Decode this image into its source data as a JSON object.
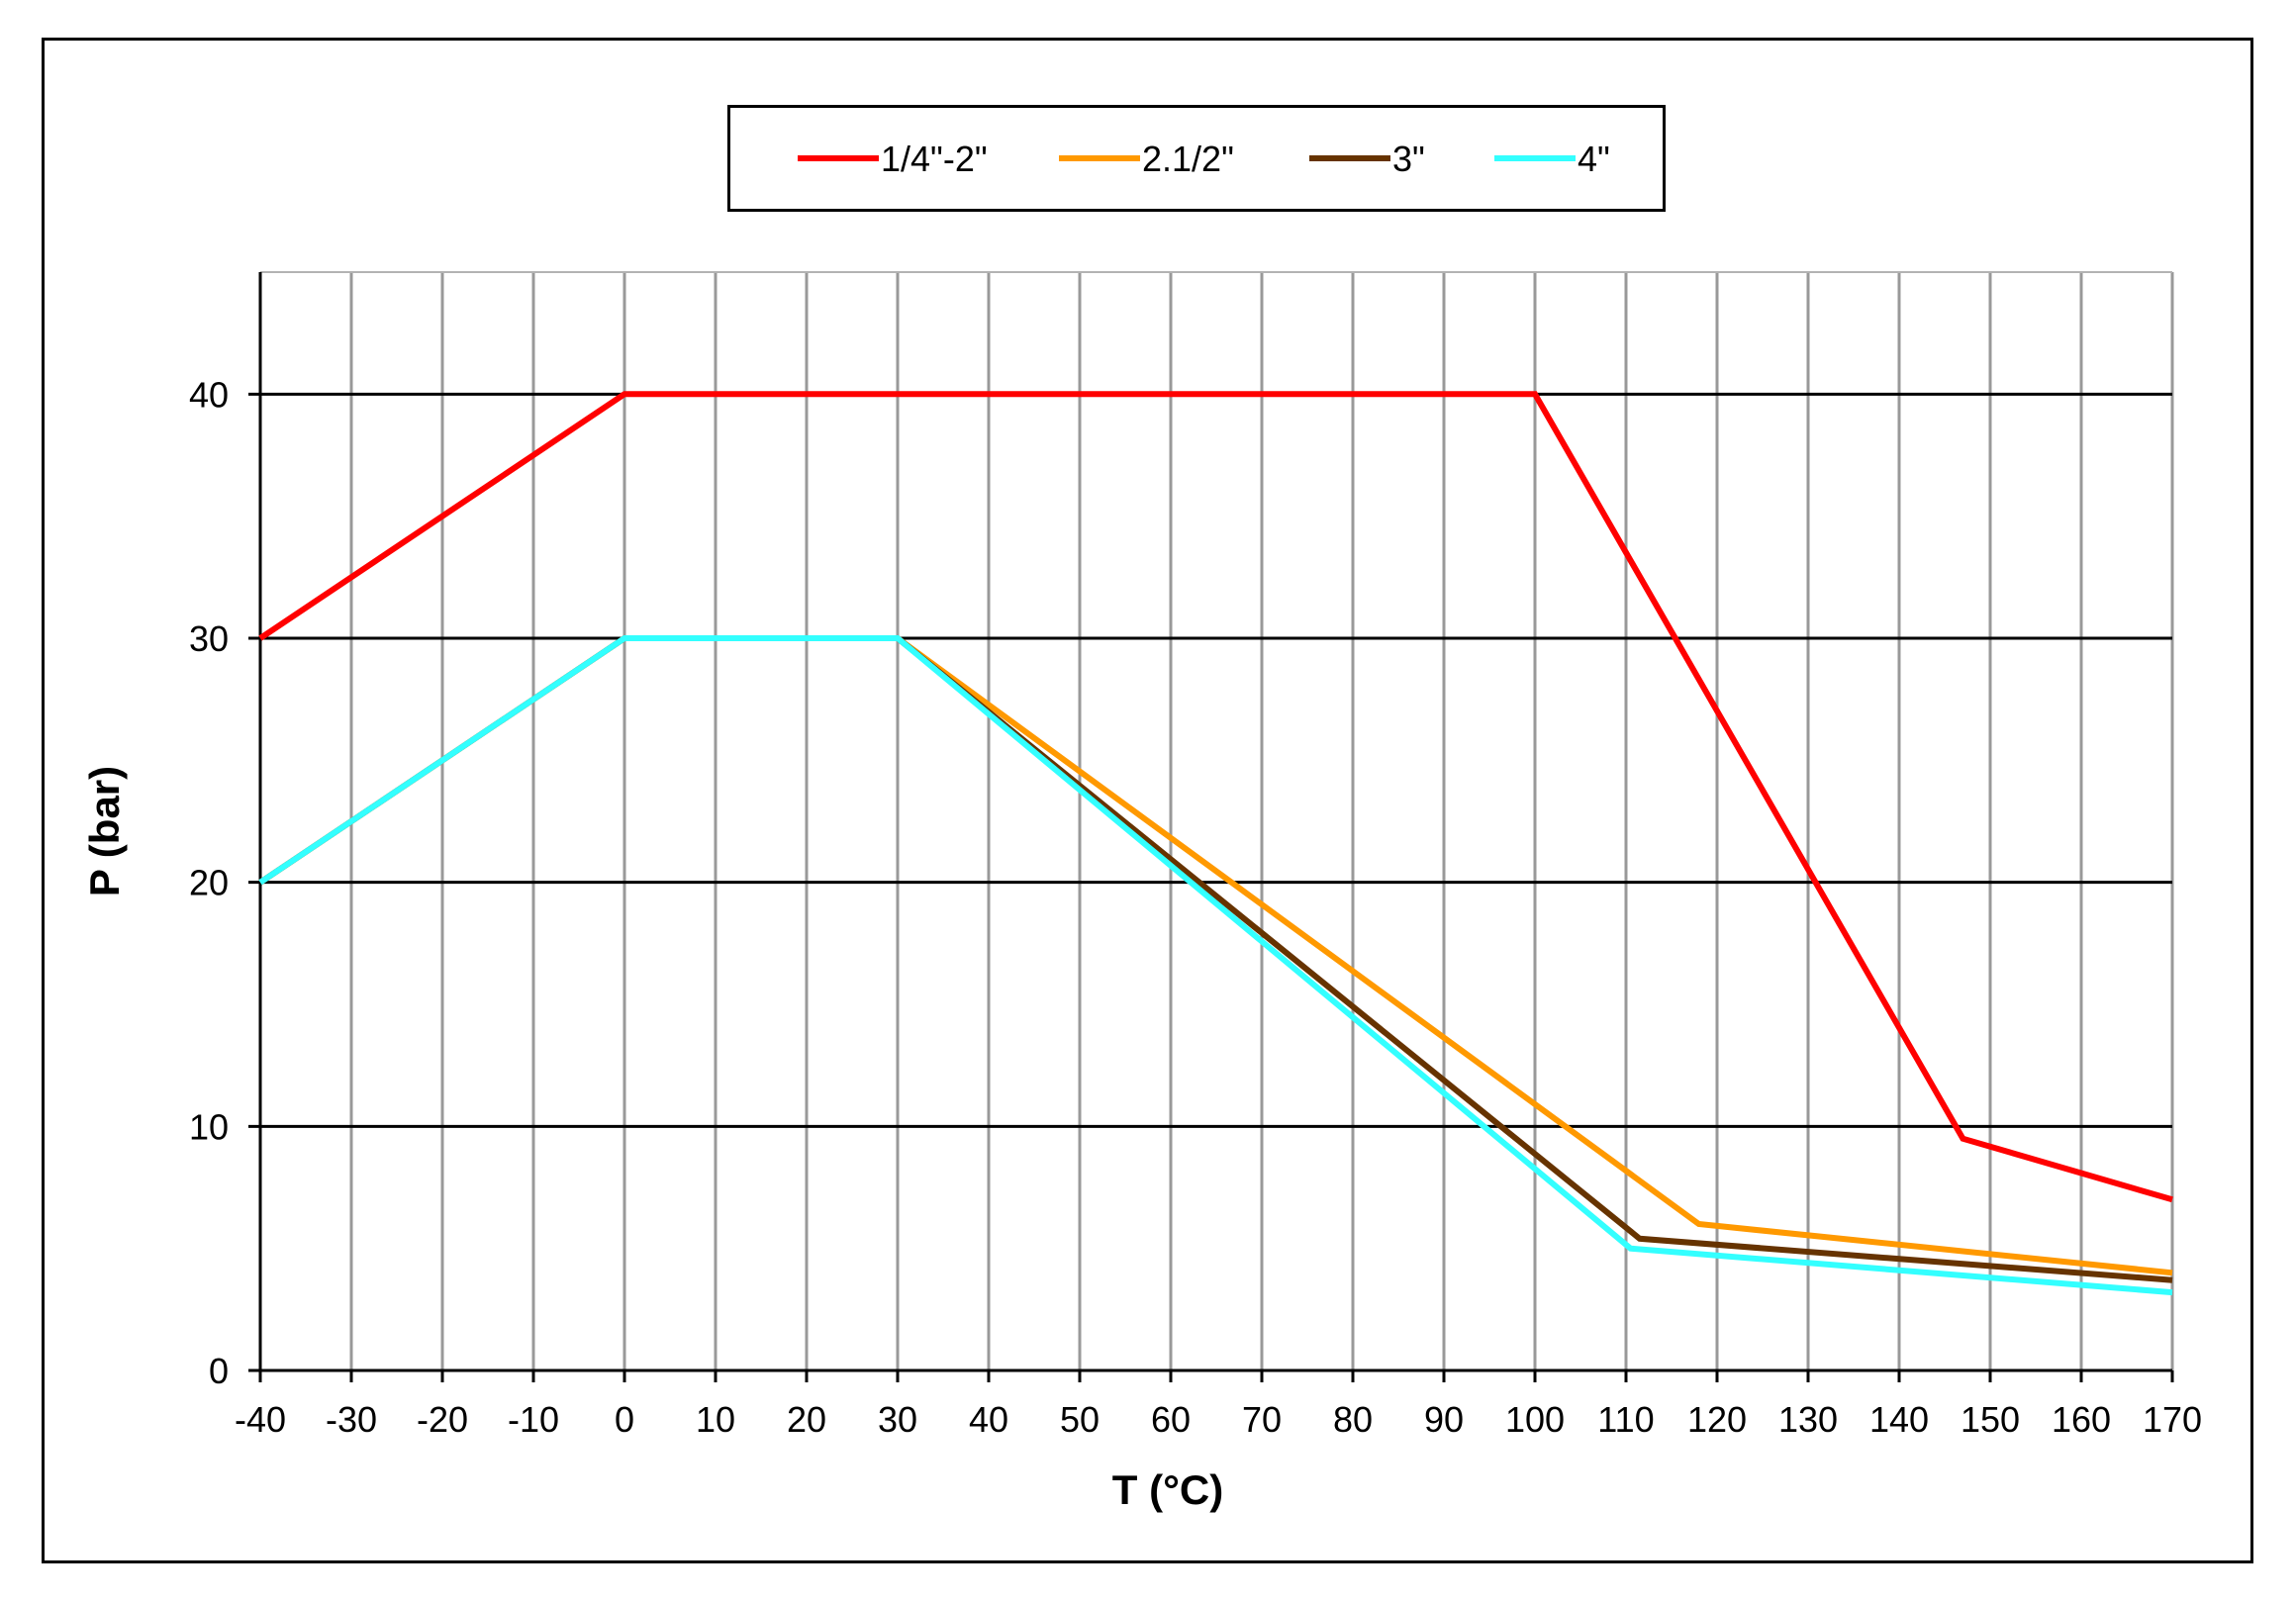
{
  "chart_data": {
    "type": "line",
    "title": "",
    "xlabel": "T (°C)",
    "ylabel": "P (bar)",
    "xlim": [
      -40,
      170
    ],
    "ylim": [
      0,
      45
    ],
    "x_ticks": [
      -40,
      -30,
      -20,
      -10,
      0,
      10,
      20,
      30,
      40,
      50,
      60,
      70,
      80,
      90,
      100,
      110,
      120,
      130,
      140,
      150,
      160,
      170
    ],
    "y_ticks": [
      0,
      10,
      20,
      30,
      40
    ],
    "grid": true,
    "legend_position": "top-center",
    "series": [
      {
        "name": "1/4\"-2\"",
        "color": "#ff0000",
        "points": [
          [
            -40,
            30
          ],
          [
            0,
            40
          ],
          [
            100,
            40
          ],
          [
            147,
            9.5
          ],
          [
            170,
            7
          ]
        ]
      },
      {
        "name": "2.1/2\"",
        "color": "#ff9900",
        "points": [
          [
            -40,
            20
          ],
          [
            0,
            30
          ],
          [
            30,
            30
          ],
          [
            118,
            6
          ],
          [
            170,
            4
          ]
        ]
      },
      {
        "name": "3\"",
        "color": "#663300",
        "points": [
          [
            -40,
            20
          ],
          [
            0,
            30
          ],
          [
            30,
            30
          ],
          [
            111.5,
            5.4
          ],
          [
            170,
            3.7
          ]
        ]
      },
      {
        "name": "4\"",
        "color": "#33ffff",
        "points": [
          [
            -40,
            20
          ],
          [
            0,
            30
          ],
          [
            30,
            30
          ],
          [
            110.5,
            5
          ],
          [
            170,
            3.2
          ]
        ]
      }
    ]
  }
}
